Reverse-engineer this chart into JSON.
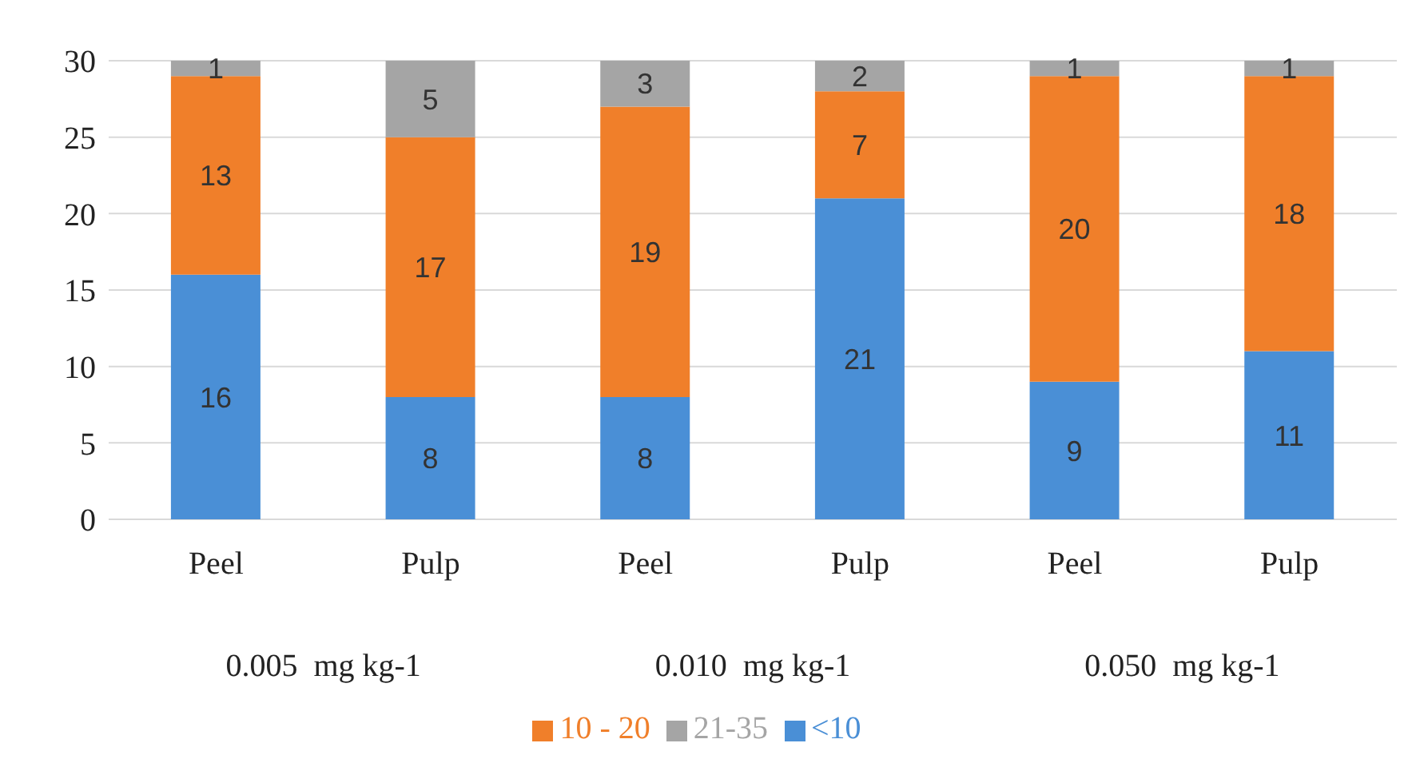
{
  "chart_data": {
    "type": "bar",
    "stacked": true,
    "categories": [
      "Peel",
      "Pulp",
      "Peel",
      "Pulp",
      "Peel",
      "Pulp"
    ],
    "series": [
      {
        "name": "<10",
        "color": "#4a8fd6",
        "values": [
          16,
          8,
          8,
          21,
          9,
          11
        ]
      },
      {
        "name": "10 - 20",
        "color": "#f07f2a",
        "values": [
          13,
          17,
          19,
          7,
          20,
          18
        ]
      },
      {
        "name": "21-35",
        "color": "#a5a5a5",
        "values": [
          1,
          5,
          3,
          2,
          1,
          1
        ]
      }
    ],
    "ylim": [
      0,
      30
    ],
    "yticks": [
      0,
      5,
      10,
      15,
      20,
      25,
      30
    ],
    "grid": "y",
    "data_labels": true,
    "legend": "bottom",
    "annotations": [
      "0.005  mg kg-1",
      "0.010  mg kg-1",
      "0.050  mg kg-1"
    ]
  }
}
